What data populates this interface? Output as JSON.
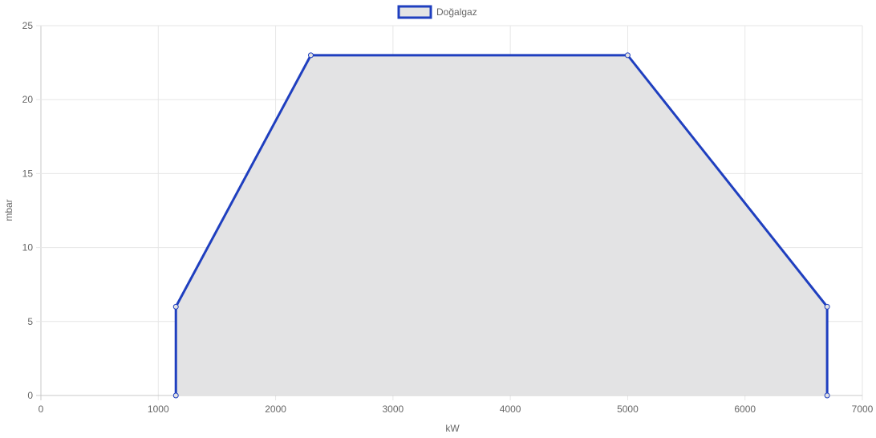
{
  "chart_data": {
    "type": "area",
    "xlabel": "kW",
    "ylabel": "mbar",
    "xlim": [
      0,
      7000
    ],
    "ylim": [
      0,
      25
    ],
    "xticks": [
      0,
      1000,
      2000,
      3000,
      4000,
      5000,
      6000,
      7000
    ],
    "yticks": [
      0,
      5,
      10,
      15,
      20,
      25
    ],
    "grid": true,
    "legend_position": "top-center",
    "series": [
      {
        "name": "Doğalgaz",
        "color": "#1f3fbf",
        "fill": "#e3e3e4",
        "points": [
          {
            "x": 1150,
            "y": 0
          },
          {
            "x": 1150,
            "y": 6
          },
          {
            "x": 2300,
            "y": 23
          },
          {
            "x": 5000,
            "y": 23
          },
          {
            "x": 6700,
            "y": 6
          },
          {
            "x": 6700,
            "y": 0
          }
        ]
      }
    ]
  }
}
